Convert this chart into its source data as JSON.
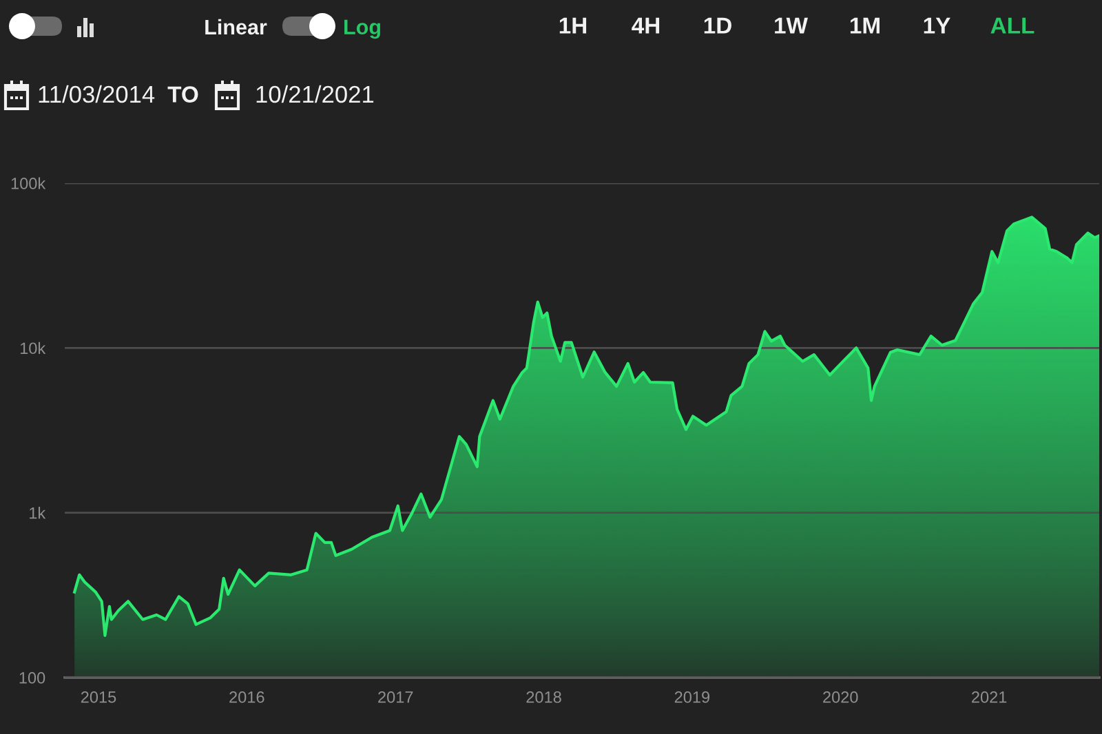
{
  "chart_data": {
    "type": "area",
    "color": "#2be86f",
    "x": [
      "2014-11-03",
      "2014-11-15",
      "2014-11-28",
      "2014-12-25",
      "2015-01-09",
      "2015-01-17",
      "2015-01-28",
      "2015-02-02",
      "2015-02-19",
      "2015-03-15",
      "2015-04-20",
      "2015-05-24",
      "2015-06-15",
      "2015-07-18",
      "2015-08-09",
      "2015-08-29",
      "2015-10-03",
      "2015-10-25",
      "2015-11-05",
      "2015-11-16",
      "2015-12-14",
      "2016-01-21",
      "2016-02-24",
      "2016-04-19",
      "2016-05-28",
      "2016-06-19",
      "2016-07-11",
      "2016-07-27",
      "2016-08-07",
      "2016-09-15",
      "2016-11-04",
      "2016-12-18",
      "2017-01-07",
      "2017-01-18",
      "2017-02-11",
      "2017-03-05",
      "2017-03-27",
      "2017-04-24",
      "2017-06-07",
      "2017-06-24",
      "2017-07-21",
      "2017-07-27",
      "2017-08-29",
      "2017-09-15",
      "2017-10-18",
      "2017-11-09",
      "2017-11-20",
      "2017-12-07",
      "2017-12-17",
      "2017-12-29",
      "2018-01-09",
      "2018-01-20",
      "2018-02-11",
      "2018-02-22",
      "2018-03-10",
      "2018-04-07",
      "2018-05-05",
      "2018-06-01",
      "2018-06-29",
      "2018-07-27",
      "2018-08-12",
      "2018-09-03",
      "2018-09-20",
      "2018-11-14",
      "2018-11-25",
      "2018-12-17",
      "2019-01-03",
      "2019-02-05",
      "2019-03-26",
      "2019-04-07",
      "2019-05-04",
      "2019-05-21",
      "2019-06-12",
      "2019-06-29",
      "2019-07-15",
      "2019-08-06",
      "2019-08-17",
      "2019-09-30",
      "2019-10-28",
      "2019-12-06",
      "2019-12-28",
      "2020-02-09",
      "2020-03-09",
      "2020-03-17",
      "2020-03-25",
      "2020-05-03",
      "2020-05-20",
      "2020-07-14",
      "2020-08-11",
      "2020-09-07",
      "2020-10-10",
      "2020-10-27",
      "2020-11-23",
      "2020-12-15",
      "2021-01-08",
      "2021-01-23",
      "2021-02-14",
      "2021-03-03",
      "2021-04-16",
      "2021-05-19",
      "2021-05-30",
      "2021-06-16",
      "2021-07-13",
      "2021-07-24",
      "2021-08-04",
      "2021-09-01",
      "2021-09-18",
      "2021-09-29"
    ],
    "values": [
      330,
      420,
      380,
      330,
      290,
      180,
      270,
      225,
      255,
      290,
      225,
      240,
      225,
      310,
      280,
      210,
      230,
      260,
      400,
      320,
      450,
      360,
      430,
      420,
      450,
      750,
      660,
      660,
      550,
      600,
      710,
      780,
      1100,
      780,
      1000,
      1300,
      940,
      1200,
      2900,
      2600,
      1900,
      2900,
      4800,
      3700,
      5850,
      7100,
      7550,
      14300,
      19000,
      15300,
      16300,
      11800,
      8300,
      10800,
      10800,
      6650,
      9450,
      7100,
      5850,
      8050,
      6200,
      7100,
      6200,
      6150,
      4250,
      3200,
      3850,
      3400,
      4100,
      5150,
      5850,
      8050,
      9100,
      12600,
      11000,
      11800,
      10400,
      8300,
      9100,
      6850,
      7800,
      10000,
      7550,
      4800,
      5850,
      9400,
      9750,
      9100,
      11800,
      10400,
      11100,
      13500,
      18500,
      21700,
      38500,
      32900,
      51400,
      56600,
      62200,
      53100,
      39800,
      38500,
      35000,
      32900,
      42400,
      49800,
      46700,
      48000
    ],
    "xlim": [
      "2014-10-10",
      "2021-09-29"
    ],
    "xticks": [
      {
        "value": "2015",
        "label": "2015"
      },
      {
        "value": "2016",
        "label": "2016"
      },
      {
        "value": "2017",
        "label": "2017"
      },
      {
        "value": "2018",
        "label": "2018"
      },
      {
        "value": "2019",
        "label": "2019"
      },
      {
        "value": "2020",
        "label": "2020"
      },
      {
        "value": "2021",
        "label": "2021"
      }
    ],
    "ylim": [
      100,
      100000
    ],
    "yticks": [
      100,
      {
        "value": 1000,
        "label": "1k"
      },
      {
        "value": 10000,
        "label": "10k"
      },
      {
        "value": 100000,
        "label": "100k"
      }
    ],
    "log": "y",
    "grid": "y",
    "annotations": [
      "Linear",
      "Log",
      "1H",
      "4H",
      "1D",
      "1W",
      "1M",
      "1Y",
      "ALL",
      "11/03/2014",
      "TO",
      "10/21/2021"
    ]
  }
}
